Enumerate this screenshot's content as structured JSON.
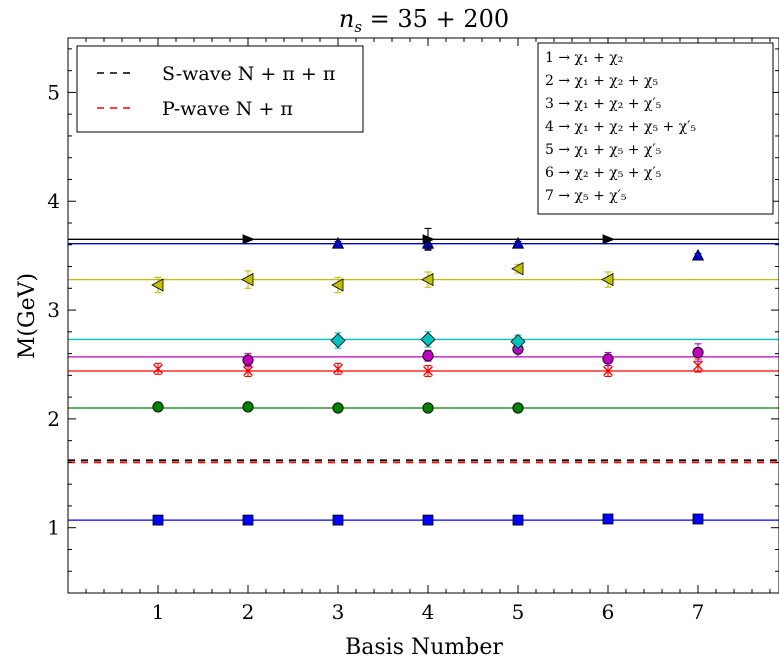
{
  "chart_data": {
    "type": "scatter",
    "title": "n_s = 35 + 200",
    "xlabel": "Basis Number",
    "ylabel": "M(GeV)",
    "xlim": [
      0,
      7.9
    ],
    "ylim": [
      0.4,
      5.5
    ],
    "x_ticks": [
      1,
      2,
      3,
      4,
      5,
      6,
      7
    ],
    "y_ticks": [
      1,
      2,
      3,
      4,
      5
    ],
    "grid": false,
    "threshold_lines": [
      {
        "name": "S-wave N + π + π",
        "y": 1.62,
        "color": "#000000"
      },
      {
        "name": "P-wave N + π",
        "y": 1.6,
        "color": "#ff0000"
      }
    ],
    "basis_legend": [
      "1 → χ₁ + χ₂",
      "2 → χ₁ + χ₂ + χ₅",
      "3 → χ₁ + χ₂ + χ′₅",
      "4 → χ₁ + χ₂ + χ₅ + χ′₅",
      "5 → χ₁ + χ₅ + χ′₅",
      "6 → χ₂ + χ₅ + χ′₅",
      "7 → χ₅ + χ′₅"
    ],
    "series": [
      {
        "marker": "square",
        "color": "#0000ff",
        "line": 1.07,
        "x": [
          1,
          2,
          3,
          4,
          5,
          6,
          7
        ],
        "y": [
          1.07,
          1.07,
          1.07,
          1.07,
          1.07,
          1.08,
          1.08
        ],
        "err": [
          0.02,
          0.02,
          0.02,
          0.02,
          0.02,
          0.02,
          0.02
        ]
      },
      {
        "marker": "circle",
        "color": "#008000",
        "line": 2.1,
        "x": [
          1,
          2,
          3,
          4,
          5
        ],
        "y": [
          2.11,
          2.11,
          2.1,
          2.1,
          2.1
        ],
        "err": [
          0.02,
          0.02,
          0.02,
          0.02,
          0.02
        ]
      },
      {
        "marker": "x",
        "color": "#ff0000",
        "line": 2.44,
        "x": [
          1,
          2,
          3,
          4,
          6,
          7
        ],
        "y": [
          2.46,
          2.44,
          2.46,
          2.44,
          2.44,
          2.49
        ],
        "err": [
          0.05,
          0.05,
          0.05,
          0.05,
          0.05,
          0.06
        ]
      },
      {
        "marker": "circle",
        "color": "#c000c0",
        "line": 2.57,
        "x": [
          2,
          4,
          5,
          6,
          7
        ],
        "y": [
          2.54,
          2.58,
          2.64,
          2.55,
          2.61
        ],
        "err": [
          0.06,
          0.05,
          0.07,
          0.06,
          0.08
        ]
      },
      {
        "marker": "diamond",
        "color": "#00c0c0",
        "line": 2.73,
        "x": [
          3,
          4,
          5
        ],
        "y": [
          2.72,
          2.73,
          2.71
        ],
        "err": [
          0.07,
          0.07,
          0.06
        ]
      },
      {
        "marker": "triangle-left",
        "color": "#c0c000",
        "line": 3.28,
        "x": [
          1,
          2,
          3,
          4,
          5,
          6
        ],
        "y": [
          3.23,
          3.28,
          3.23,
          3.28,
          3.38,
          3.28
        ],
        "err": [
          0.07,
          0.08,
          0.07,
          0.07,
          0.04,
          0.07
        ]
      },
      {
        "marker": "triangle-up",
        "color": "#0000cc",
        "line": 3.61,
        "x": [
          3,
          4,
          5,
          7
        ],
        "y": [
          3.61,
          3.61,
          3.61,
          3.5
        ],
        "err": [
          0.02,
          0.05,
          0.02,
          0.02
        ]
      },
      {
        "marker": "triangle-right",
        "color": "#000000",
        "line": 3.65,
        "x": [
          2,
          4,
          6
        ],
        "y": [
          3.65,
          3.65,
          3.65
        ],
        "err": [
          0.01,
          0.1,
          0.01
        ]
      }
    ]
  }
}
